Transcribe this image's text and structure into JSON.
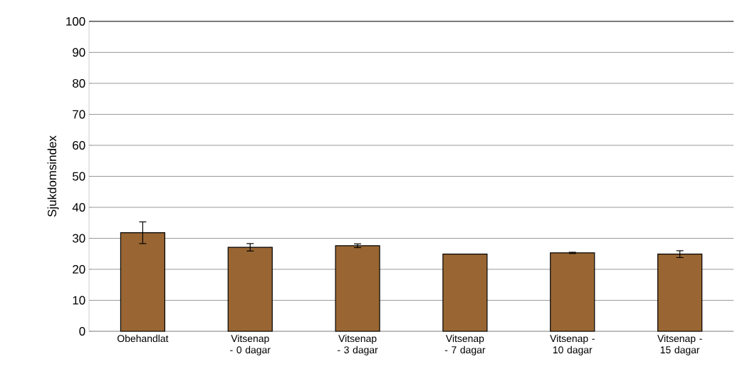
{
  "chart_data": {
    "type": "bar",
    "ylabel": "Sjukdomsindex",
    "categories": [
      "Obehandlat",
      "Vitsenap - 0 dagar",
      "Vitsenap - 3 dagar",
      "Vitsenap - 7 dagar",
      "Vitsenap - 10 dagar",
      "Vitsenap - 15 dagar"
    ],
    "values": [
      31.8,
      27.1,
      27.6,
      24.9,
      25.3,
      24.9
    ],
    "errors": [
      3.5,
      1.2,
      0.6,
      null,
      0.2,
      1.1
    ],
    "color": "#996633",
    "ylim": [
      0,
      100
    ],
    "yticks": [
      0,
      10,
      20,
      30,
      40,
      50,
      60,
      70,
      80,
      90,
      100
    ],
    "grid": "y"
  }
}
